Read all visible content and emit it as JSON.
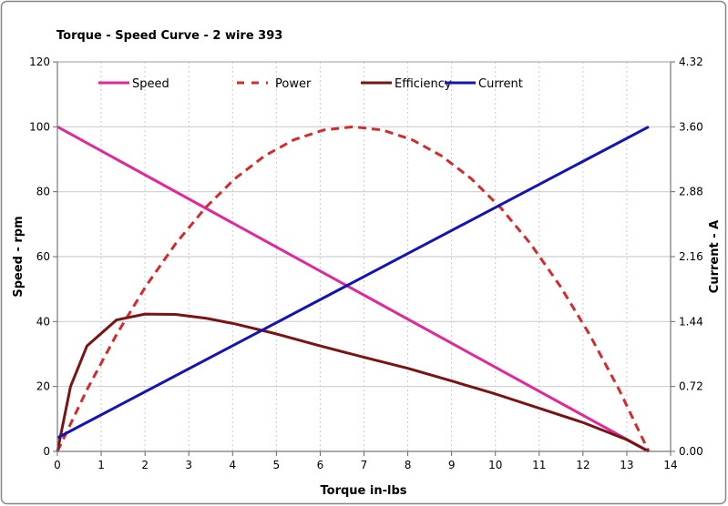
{
  "chart_data": {
    "type": "line",
    "title": "Torque - Speed Curve  - 2 wire 393",
    "xlabel": "Torque in-lbs",
    "ylabel": "Speed - rpm",
    "y2label": "Current - A",
    "xlim": [
      0,
      14
    ],
    "ylim": [
      0,
      120
    ],
    "y2lim": [
      0,
      4.32
    ],
    "xticks": [
      "0",
      "1",
      "2",
      "3",
      "4",
      "5",
      "6",
      "7",
      "8",
      "9",
      "10",
      "11",
      "12",
      "13",
      "14"
    ],
    "yticks": [
      "0",
      "20",
      "40",
      "60",
      "80",
      "100",
      "120"
    ],
    "y2ticks": [
      "0.00",
      "0.72",
      "1.44",
      "2.16",
      "2.88",
      "3.60",
      "4.32"
    ],
    "grid": true,
    "legend": "top",
    "series": [
      {
        "name": "Speed",
        "axis": "left",
        "color": "#e0289a",
        "dash": false,
        "x": [
          0,
          13.5
        ],
        "y": [
          100,
          0
        ]
      },
      {
        "name": "Power",
        "axis": "left",
        "color": "#d42a2a",
        "dash": true,
        "x": [
          0,
          0.675,
          1.35,
          2.025,
          2.7,
          3.375,
          4.05,
          4.725,
          5.4,
          6.075,
          6.75,
          7.425,
          8.1,
          8.775,
          9.45,
          10.125,
          10.8,
          11.475,
          12.15,
          12.825,
          13.5
        ],
        "y": [
          0,
          19,
          36,
          51,
          64,
          75,
          84,
          91,
          96,
          99,
          100,
          99,
          96,
          91,
          84,
          75,
          64,
          51,
          36,
          19,
          0
        ]
      },
      {
        "name": "Efficiency",
        "axis": "left",
        "color": "#7a1414",
        "dash": false,
        "x": [
          0,
          0.3,
          0.675,
          1.35,
          2.0,
          2.7,
          3.4,
          4.05,
          5,
          6,
          7,
          8,
          9,
          10,
          11,
          12,
          13,
          13.5
        ],
        "y": [
          0,
          20,
          32.5,
          40.5,
          42.3,
          42.2,
          41,
          39.3,
          36.2,
          32.5,
          29,
          25.6,
          21.7,
          17.7,
          13.3,
          8.9,
          3.6,
          0
        ]
      },
      {
        "name": "Current",
        "axis": "right",
        "color": "#1414b4",
        "dash": false,
        "x": [
          0,
          13.5
        ],
        "y": [
          0.15,
          3.6
        ]
      }
    ]
  }
}
